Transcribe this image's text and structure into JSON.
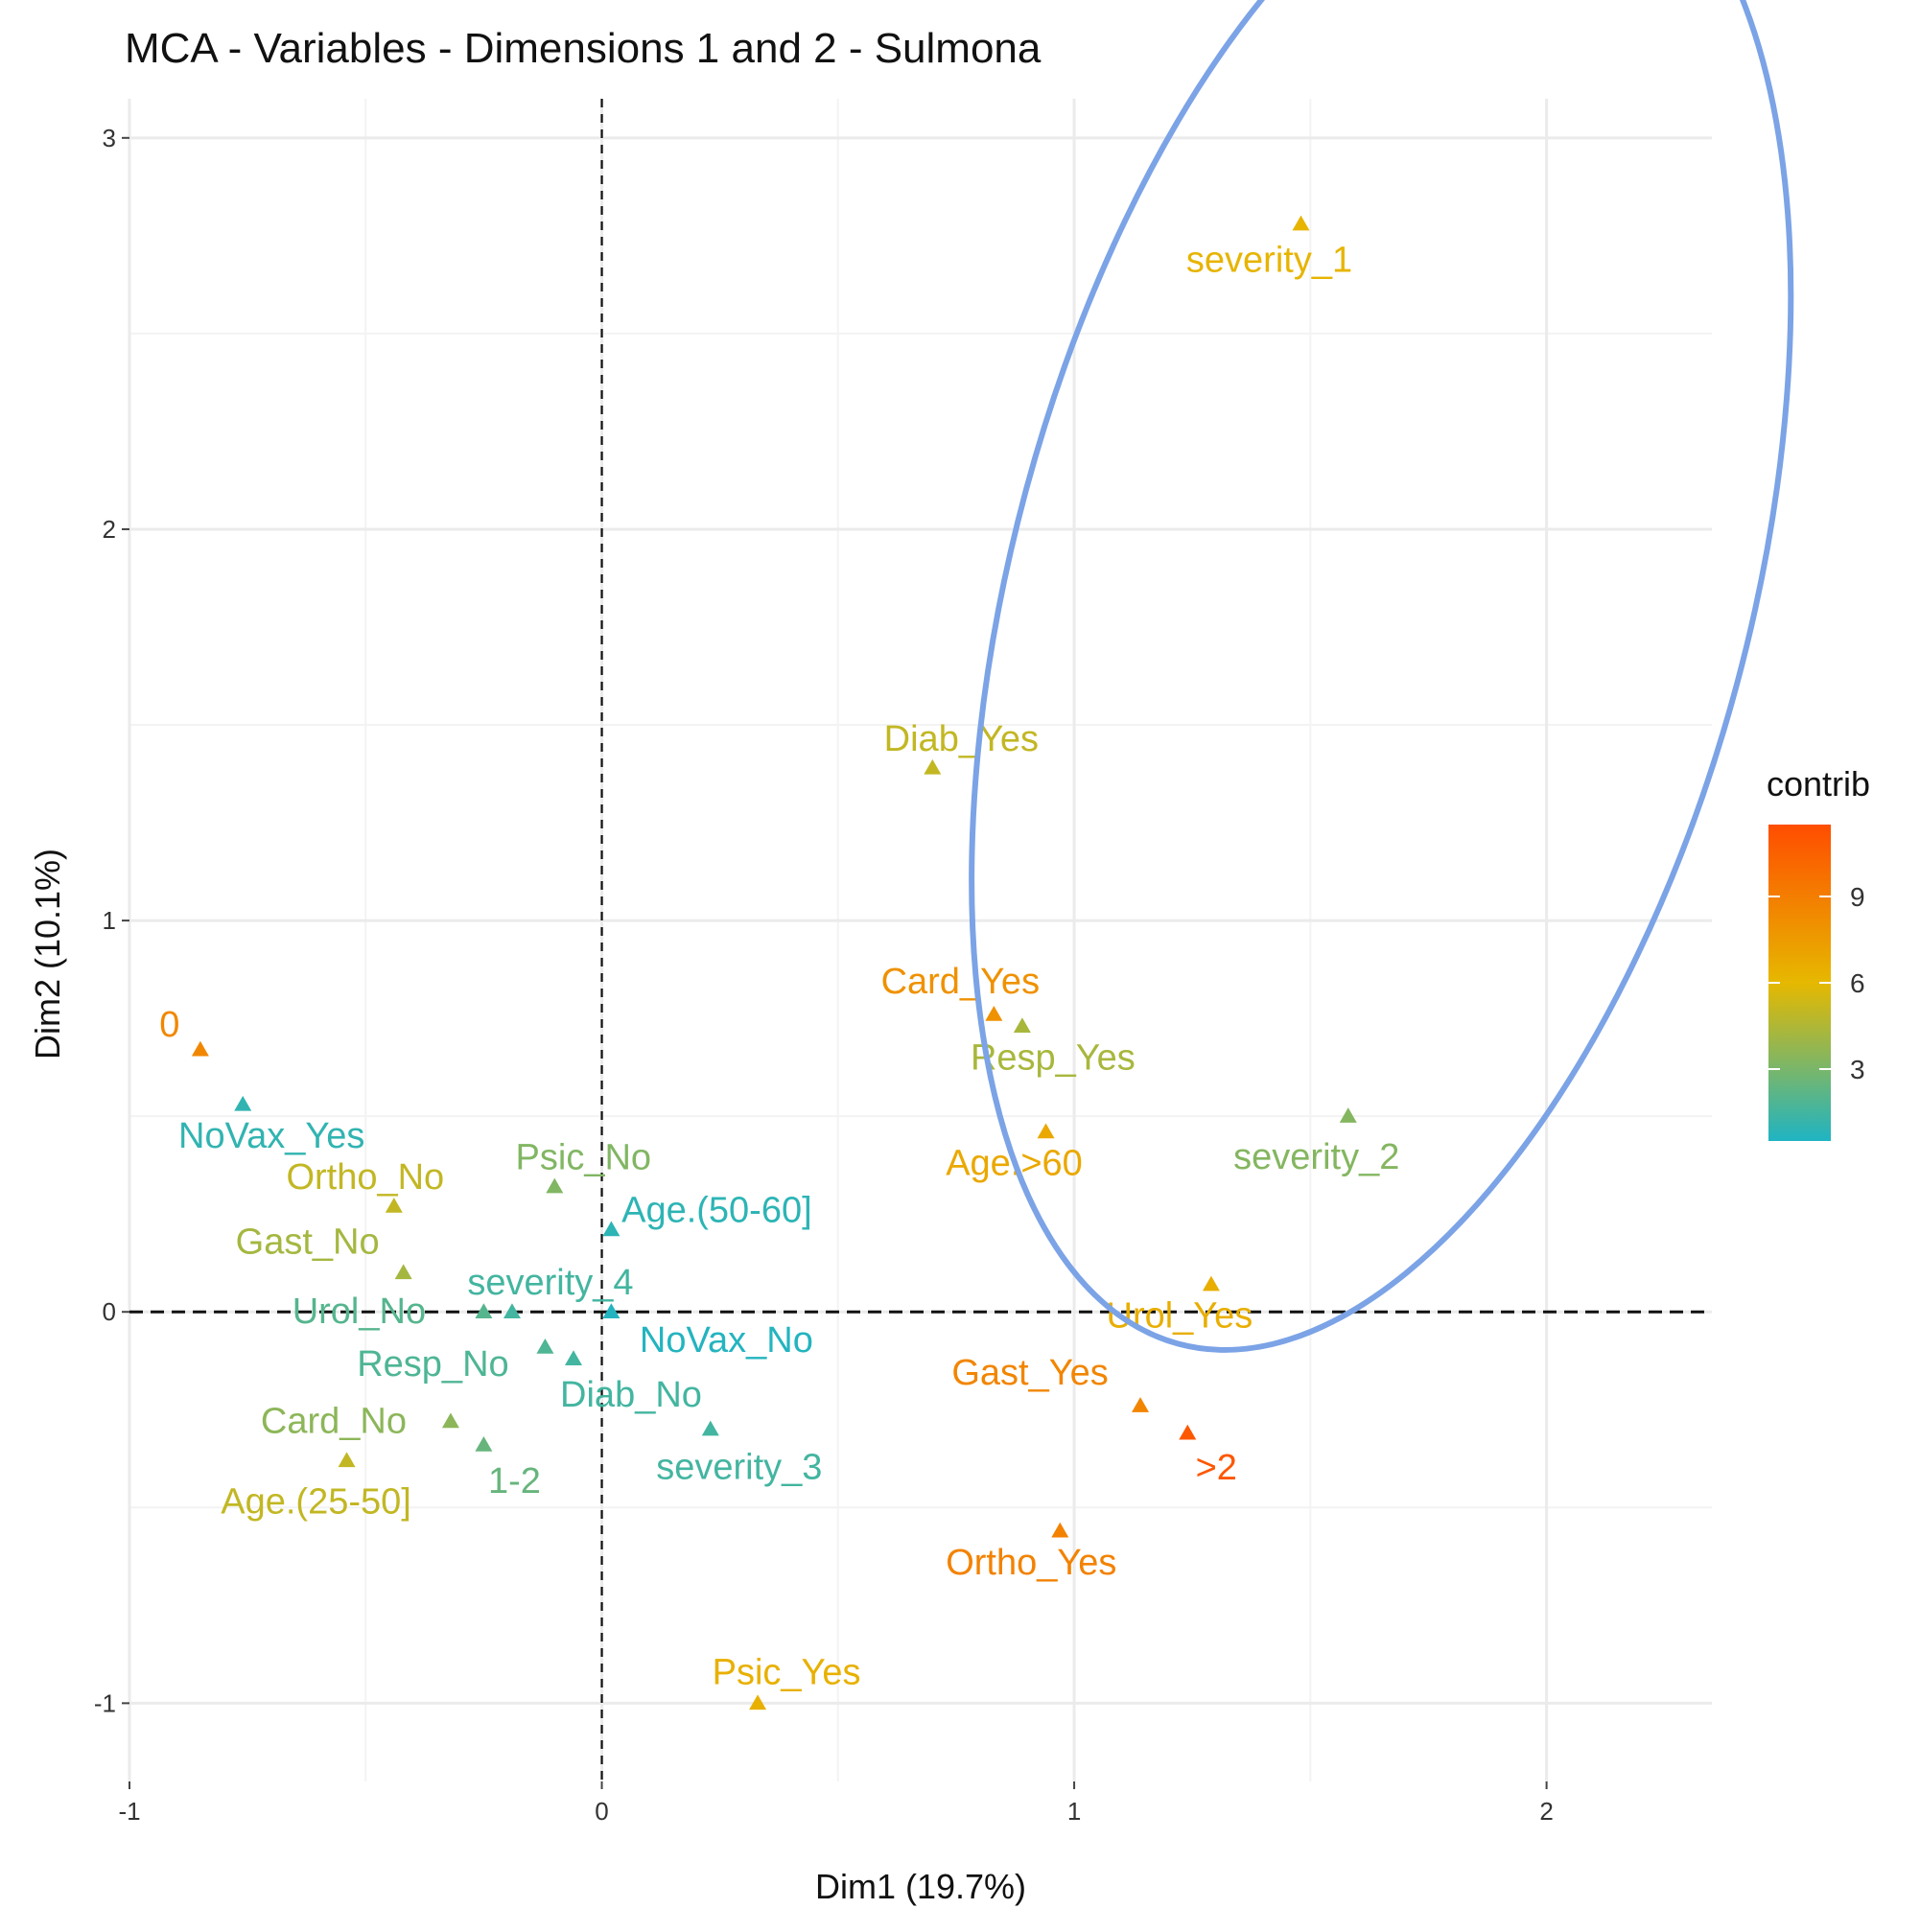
{
  "chart_data": {
    "type": "scatter",
    "title": "MCA - Variables - Dimensions 1 and 2 - Sulmona",
    "xlabel": "Dim1 (19.7%)",
    "ylabel": "Dim2 (10.1%)",
    "xlim": [
      -1,
      2.35
    ],
    "ylim": [
      -1.2,
      3.1
    ],
    "x_ticks": [
      -1,
      0,
      1,
      2
    ],
    "x_tick_labels": [
      "-1",
      "0",
      "1",
      "2"
    ],
    "y_ticks": [
      -1,
      0,
      1,
      2,
      3
    ],
    "y_tick_labels": [
      "-1",
      "0",
      "1",
      "2",
      "3"
    ],
    "grid": true,
    "reference_lines": {
      "x": 0,
      "y": 0,
      "style": "dashed"
    },
    "legend": {
      "title": "contrib",
      "placement": "right",
      "range": [
        0.5,
        11.5
      ],
      "breaks": [
        3,
        6,
        9
      ],
      "break_labels": [
        "3",
        "6",
        "9"
      ],
      "colors": [
        "#1fb4c3",
        "#e6b800",
        "#ff4d00"
      ]
    },
    "ellipse": {
      "cx": 1.65,
      "cy": 1.85,
      "rx": 0.78,
      "ry": 2.0,
      "angle_deg": 15,
      "color": "#7ba3e6"
    },
    "points": [
      {
        "label": "severity_1",
        "x": 1.48,
        "y": 2.78,
        "contrib": 6.2
      },
      {
        "label": "Diab_Yes",
        "x": 0.7,
        "y": 1.39,
        "contrib": 5.0
      },
      {
        "label": "Card_Yes",
        "x": 0.83,
        "y": 0.76,
        "contrib": 8.0
      },
      {
        "label": "Resp_Yes",
        "x": 0.89,
        "y": 0.73,
        "contrib": 4.3
      },
      {
        "label": "Age.>60",
        "x": 0.94,
        "y": 0.46,
        "contrib": 6.8
      },
      {
        "label": "severity_2",
        "x": 1.58,
        "y": 0.5,
        "contrib": 3.3
      },
      {
        "label": "Urol_Yes",
        "x": 1.29,
        "y": 0.07,
        "contrib": 6.5
      },
      {
        "label": "Gast_Yes",
        "x": 1.14,
        "y": -0.24,
        "contrib": 8.6
      },
      {
        "label": ">2",
        "x": 1.24,
        "y": -0.31,
        "contrib": 11.0
      },
      {
        "label": "Ortho_Yes",
        "x": 0.97,
        "y": -0.56,
        "contrib": 8.8
      },
      {
        "label": "Psic_Yes",
        "x": 0.33,
        "y": -1.0,
        "contrib": 6.4
      },
      {
        "label": "0",
        "x": -0.85,
        "y": 0.67,
        "contrib": 8.5
      },
      {
        "label": "NoVax_Yes",
        "x": -0.76,
        "y": 0.53,
        "contrib": 1.0
      },
      {
        "label": "Ortho_No",
        "x": -0.44,
        "y": 0.27,
        "contrib": 5.0
      },
      {
        "label": "Psic_No",
        "x": -0.1,
        "y": 0.32,
        "contrib": 3.2
      },
      {
        "label": "Age.(50-60]",
        "x": 0.02,
        "y": 0.21,
        "contrib": 0.9
      },
      {
        "label": "Gast_No",
        "x": -0.42,
        "y": 0.1,
        "contrib": 4.2
      },
      {
        "label": "severity_4",
        "x": -0.19,
        "y": 0.0,
        "contrib": 1.5
      },
      {
        "label": "Urol_No",
        "x": -0.25,
        "y": 0.0,
        "contrib": 2.0
      },
      {
        "label": "NoVax_No",
        "x": 0.02,
        "y": 0.0,
        "contrib": 0.6
      },
      {
        "label": "Resp_No",
        "x": -0.12,
        "y": -0.09,
        "contrib": 1.8
      },
      {
        "label": "Diab_No",
        "x": -0.06,
        "y": -0.12,
        "contrib": 1.5
      },
      {
        "label": "Card_No",
        "x": -0.32,
        "y": -0.28,
        "contrib": 3.5
      },
      {
        "label": "1-2",
        "x": -0.25,
        "y": -0.34,
        "contrib": 2.5
      },
      {
        "label": "Age.(25-50]",
        "x": -0.54,
        "y": -0.38,
        "contrib": 5.0
      },
      {
        "label": "severity_3",
        "x": 0.23,
        "y": -0.3,
        "contrib": 1.5
      }
    ]
  }
}
